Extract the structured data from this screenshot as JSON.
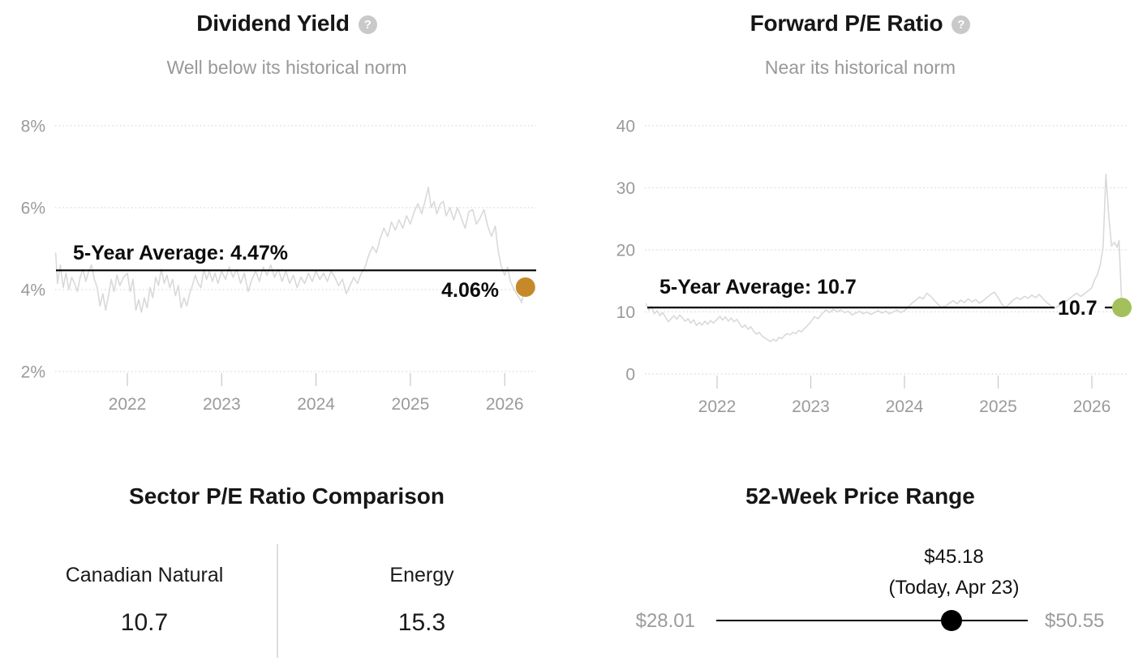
{
  "help_icon_glyph": "?",
  "chart_data": [
    {
      "type": "line",
      "title": "Dividend Yield",
      "subtitle": "Well below its historical norm",
      "ylim": [
        2,
        8
      ],
      "xlim": [
        2021.24,
        2026.32
      ],
      "grid": true,
      "series_color": "#d9d9d9",
      "average_line_color": "#000000",
      "yticks": [
        {
          "v": 8,
          "label": "8%"
        },
        {
          "v": 6,
          "label": "6%"
        },
        {
          "v": 4,
          "label": "4%"
        },
        {
          "v": 2,
          "label": "2%"
        }
      ],
      "xticks": [
        {
          "v": 2022,
          "label": "2022"
        },
        {
          "v": 2023,
          "label": "2023"
        },
        {
          "v": 2024,
          "label": "2024"
        },
        {
          "v": 2025,
          "label": "2025"
        },
        {
          "v": 2026,
          "label": "2026"
        }
      ],
      "average": {
        "value": 4.47,
        "label": "5-Year Average: 4.47%"
      },
      "current": {
        "value": 4.06,
        "label": "4.06%",
        "color": "#c6892a"
      },
      "series": [
        [
          2021.24,
          4.9
        ],
        [
          2021.26,
          4.15
        ],
        [
          2021.29,
          4.6
        ],
        [
          2021.32,
          4.05
        ],
        [
          2021.35,
          4.4
        ],
        [
          2021.38,
          4.0
        ],
        [
          2021.41,
          4.3
        ],
        [
          2021.44,
          4.15
        ],
        [
          2021.47,
          3.95
        ],
        [
          2021.5,
          4.3
        ],
        [
          2021.53,
          4.5
        ],
        [
          2021.56,
          4.2
        ],
        [
          2021.59,
          4.45
        ],
        [
          2021.62,
          4.6
        ],
        [
          2021.65,
          4.25
        ],
        [
          2021.68,
          4.05
        ],
        [
          2021.71,
          3.6
        ],
        [
          2021.74,
          3.9
        ],
        [
          2021.77,
          3.5
        ],
        [
          2021.8,
          3.85
        ],
        [
          2021.83,
          4.25
        ],
        [
          2021.86,
          3.95
        ],
        [
          2021.89,
          4.35
        ],
        [
          2021.92,
          4.1
        ],
        [
          2021.96,
          4.3
        ],
        [
          2022.0,
          4.4
        ],
        [
          2022.03,
          3.95
        ],
        [
          2022.06,
          4.25
        ],
        [
          2022.09,
          3.5
        ],
        [
          2022.12,
          3.75
        ],
        [
          2022.15,
          3.45
        ],
        [
          2022.18,
          3.8
        ],
        [
          2022.21,
          3.55
        ],
        [
          2022.24,
          4.05
        ],
        [
          2022.27,
          3.8
        ],
        [
          2022.3,
          4.3
        ],
        [
          2022.33,
          4.1
        ],
        [
          2022.36,
          4.5
        ],
        [
          2022.39,
          4.15
        ],
        [
          2022.42,
          4.35
        ],
        [
          2022.45,
          4.05
        ],
        [
          2022.48,
          4.25
        ],
        [
          2022.51,
          3.85
        ],
        [
          2022.54,
          4.1
        ],
        [
          2022.57,
          3.55
        ],
        [
          2022.6,
          3.8
        ],
        [
          2022.63,
          3.6
        ],
        [
          2022.66,
          3.9
        ],
        [
          2022.69,
          4.1
        ],
        [
          2022.72,
          4.35
        ],
        [
          2022.75,
          4.15
        ],
        [
          2022.78,
          4.05
        ],
        [
          2022.81,
          4.5
        ],
        [
          2022.84,
          4.25
        ],
        [
          2022.87,
          4.45
        ],
        [
          2022.9,
          4.2
        ],
        [
          2022.93,
          4.4
        ],
        [
          2022.96,
          4.15
        ],
        [
          2023.0,
          4.45
        ],
        [
          2023.04,
          4.25
        ],
        [
          2023.08,
          4.55
        ],
        [
          2023.12,
          4.3
        ],
        [
          2023.16,
          4.5
        ],
        [
          2023.2,
          4.15
        ],
        [
          2023.24,
          4.4
        ],
        [
          2023.28,
          3.95
        ],
        [
          2023.32,
          4.25
        ],
        [
          2023.36,
          4.45
        ],
        [
          2023.4,
          4.2
        ],
        [
          2023.44,
          4.55
        ],
        [
          2023.48,
          4.35
        ],
        [
          2023.52,
          4.6
        ],
        [
          2023.56,
          4.3
        ],
        [
          2023.6,
          4.5
        ],
        [
          2023.64,
          4.2
        ],
        [
          2023.68,
          4.45
        ],
        [
          2023.72,
          4.15
        ],
        [
          2023.76,
          4.35
        ],
        [
          2023.8,
          4.05
        ],
        [
          2023.84,
          4.3
        ],
        [
          2023.88,
          4.15
        ],
        [
          2023.92,
          4.4
        ],
        [
          2023.96,
          4.2
        ],
        [
          2024.0,
          4.45
        ],
        [
          2024.04,
          4.25
        ],
        [
          2024.08,
          4.4
        ],
        [
          2024.12,
          4.2
        ],
        [
          2024.16,
          4.45
        ],
        [
          2024.2,
          4.3
        ],
        [
          2024.24,
          4.1
        ],
        [
          2024.28,
          4.25
        ],
        [
          2024.32,
          3.9
        ],
        [
          2024.36,
          4.1
        ],
        [
          2024.4,
          4.3
        ],
        [
          2024.44,
          4.15
        ],
        [
          2024.48,
          4.4
        ],
        [
          2024.52,
          4.55
        ],
        [
          2024.56,
          4.85
        ],
        [
          2024.6,
          5.05
        ],
        [
          2024.64,
          4.9
        ],
        [
          2024.68,
          5.25
        ],
        [
          2024.72,
          5.5
        ],
        [
          2024.76,
          5.3
        ],
        [
          2024.8,
          5.65
        ],
        [
          2024.84,
          5.45
        ],
        [
          2024.88,
          5.7
        ],
        [
          2024.92,
          5.5
        ],
        [
          2024.96,
          5.8
        ],
        [
          2025.0,
          5.6
        ],
        [
          2025.04,
          5.9
        ],
        [
          2025.08,
          6.1
        ],
        [
          2025.12,
          5.85
        ],
        [
          2025.16,
          6.2
        ],
        [
          2025.19,
          6.5
        ],
        [
          2025.22,
          6.0
        ],
        [
          2025.25,
          6.15
        ],
        [
          2025.28,
          5.85
        ],
        [
          2025.32,
          6.1
        ],
        [
          2025.35,
          6.15
        ],
        [
          2025.38,
          5.8
        ],
        [
          2025.42,
          6.0
        ],
        [
          2025.46,
          5.7
        ],
        [
          2025.5,
          6.0
        ],
        [
          2025.54,
          5.75
        ],
        [
          2025.58,
          5.5
        ],
        [
          2025.62,
          5.9
        ],
        [
          2025.66,
          5.95
        ],
        [
          2025.7,
          5.6
        ],
        [
          2025.74,
          5.75
        ],
        [
          2025.78,
          5.95
        ],
        [
          2025.82,
          5.55
        ],
        [
          2025.86,
          5.3
        ],
        [
          2025.9,
          5.55
        ],
        [
          2025.93,
          4.95
        ],
        [
          2025.96,
          4.6
        ],
        [
          2026.0,
          4.35
        ],
        [
          2026.03,
          4.55
        ],
        [
          2026.06,
          4.2
        ],
        [
          2026.1,
          4.0
        ],
        [
          2026.13,
          3.88
        ],
        [
          2026.16,
          3.78
        ],
        [
          2026.18,
          3.68
        ],
        [
          2026.2,
          3.95
        ],
        [
          2026.22,
          4.06
        ]
      ]
    },
    {
      "type": "line",
      "title": "Forward P/E Ratio",
      "subtitle": "Near its historical norm",
      "ylim": [
        0,
        40
      ],
      "xlim": [
        2021.24,
        2026.32
      ],
      "grid": true,
      "series_color": "#d9d9d9",
      "average_line_color": "#000000",
      "yticks": [
        {
          "v": 40,
          "label": "40"
        },
        {
          "v": 30,
          "label": "30"
        },
        {
          "v": 20,
          "label": "20"
        },
        {
          "v": 10,
          "label": "10"
        },
        {
          "v": 0,
          "label": "0"
        }
      ],
      "xticks": [
        {
          "v": 2022,
          "label": "2022"
        },
        {
          "v": 2023,
          "label": "2023"
        },
        {
          "v": 2024,
          "label": "2024"
        },
        {
          "v": 2025,
          "label": "2025"
        },
        {
          "v": 2026,
          "label": "2026"
        }
      ],
      "average": {
        "value": 10.7,
        "label": "5-Year Average: 10.7"
      },
      "current": {
        "value": 10.7,
        "label": "10.7",
        "color": "#a3c05a"
      },
      "series": [
        [
          2021.24,
          11.4
        ],
        [
          2021.27,
          10.3
        ],
        [
          2021.3,
          10.9
        ],
        [
          2021.33,
          9.7
        ],
        [
          2021.36,
          10.2
        ],
        [
          2021.39,
          9.4
        ],
        [
          2021.42,
          9.9
        ],
        [
          2021.45,
          9.1
        ],
        [
          2021.48,
          8.4
        ],
        [
          2021.51,
          8.9
        ],
        [
          2021.54,
          9.4
        ],
        [
          2021.57,
          8.8
        ],
        [
          2021.6,
          9.5
        ],
        [
          2021.63,
          9.0
        ],
        [
          2021.66,
          8.5
        ],
        [
          2021.69,
          8.9
        ],
        [
          2021.72,
          8.2
        ],
        [
          2021.75,
          8.7
        ],
        [
          2021.78,
          7.8
        ],
        [
          2021.81,
          8.3
        ],
        [
          2021.84,
          7.9
        ],
        [
          2021.87,
          8.5
        ],
        [
          2021.9,
          8.0
        ],
        [
          2021.93,
          8.6
        ],
        [
          2021.96,
          8.2
        ],
        [
          2022.0,
          8.8
        ],
        [
          2022.03,
          9.3
        ],
        [
          2022.06,
          8.7
        ],
        [
          2022.09,
          9.2
        ],
        [
          2022.12,
          8.5
        ],
        [
          2022.15,
          9.0
        ],
        [
          2022.18,
          8.4
        ],
        [
          2022.21,
          8.8
        ],
        [
          2022.24,
          8.1
        ],
        [
          2022.27,
          7.5
        ],
        [
          2022.3,
          7.9
        ],
        [
          2022.33,
          7.2
        ],
        [
          2022.36,
          7.6
        ],
        [
          2022.39,
          6.9
        ],
        [
          2022.42,
          6.4
        ],
        [
          2022.45,
          6.7
        ],
        [
          2022.48,
          6.1
        ],
        [
          2022.51,
          5.8
        ],
        [
          2022.54,
          5.5
        ],
        [
          2022.57,
          5.2
        ],
        [
          2022.6,
          5.6
        ],
        [
          2022.63,
          5.3
        ],
        [
          2022.66,
          5.9
        ],
        [
          2022.69,
          5.7
        ],
        [
          2022.72,
          6.2
        ],
        [
          2022.75,
          6.5
        ],
        [
          2022.78,
          6.3
        ],
        [
          2022.81,
          6.7
        ],
        [
          2022.84,
          6.5
        ],
        [
          2022.87,
          7.0
        ],
        [
          2022.9,
          6.8
        ],
        [
          2022.93,
          7.3
        ],
        [
          2022.96,
          7.7
        ],
        [
          2023.0,
          8.4
        ],
        [
          2023.04,
          9.2
        ],
        [
          2023.08,
          8.9
        ],
        [
          2023.12,
          9.7
        ],
        [
          2023.16,
          10.3
        ],
        [
          2023.2,
          9.9
        ],
        [
          2023.24,
          10.4
        ],
        [
          2023.28,
          10.0
        ],
        [
          2023.32,
          10.3
        ],
        [
          2023.36,
          9.9
        ],
        [
          2023.4,
          10.1
        ],
        [
          2023.44,
          9.5
        ],
        [
          2023.48,
          9.8
        ],
        [
          2023.52,
          10.1
        ],
        [
          2023.56,
          9.7
        ],
        [
          2023.6,
          10.0
        ],
        [
          2023.64,
          9.6
        ],
        [
          2023.68,
          9.9
        ],
        [
          2023.72,
          10.2
        ],
        [
          2023.76,
          9.8
        ],
        [
          2023.8,
          10.1
        ],
        [
          2023.84,
          9.7
        ],
        [
          2023.88,
          10.0
        ],
        [
          2023.92,
          10.3
        ],
        [
          2023.96,
          9.9
        ],
        [
          2024.0,
          10.2
        ],
        [
          2024.04,
          10.8
        ],
        [
          2024.08,
          11.4
        ],
        [
          2024.12,
          11.9
        ],
        [
          2024.16,
          12.4
        ],
        [
          2024.2,
          12.1
        ],
        [
          2024.24,
          13.0
        ],
        [
          2024.28,
          12.5
        ],
        [
          2024.32,
          11.8
        ],
        [
          2024.36,
          11.2
        ],
        [
          2024.4,
          10.7
        ],
        [
          2024.44,
          11.0
        ],
        [
          2024.48,
          11.4
        ],
        [
          2024.52,
          11.8
        ],
        [
          2024.56,
          11.3
        ],
        [
          2024.6,
          11.9
        ],
        [
          2024.64,
          11.5
        ],
        [
          2024.68,
          12.1
        ],
        [
          2024.72,
          11.6
        ],
        [
          2024.76,
          12.0
        ],
        [
          2024.8,
          11.4
        ],
        [
          2024.84,
          11.8
        ],
        [
          2024.88,
          12.3
        ],
        [
          2024.92,
          12.8
        ],
        [
          2024.96,
          13.2
        ],
        [
          2025.0,
          12.3
        ],
        [
          2025.04,
          11.2
        ],
        [
          2025.08,
          10.7
        ],
        [
          2025.12,
          11.3
        ],
        [
          2025.16,
          11.9
        ],
        [
          2025.2,
          12.3
        ],
        [
          2025.24,
          12.0
        ],
        [
          2025.28,
          12.5
        ],
        [
          2025.32,
          12.2
        ],
        [
          2025.36,
          12.7
        ],
        [
          2025.4,
          12.3
        ],
        [
          2025.44,
          12.8
        ],
        [
          2025.48,
          12.1
        ],
        [
          2025.52,
          11.5
        ],
        [
          2025.56,
          11.0
        ],
        [
          2025.6,
          10.6
        ],
        [
          2025.64,
          10.9
        ],
        [
          2025.68,
          11.3
        ],
        [
          2025.72,
          11.7
        ],
        [
          2025.76,
          12.1
        ],
        [
          2025.8,
          12.6
        ],
        [
          2025.84,
          13.0
        ],
        [
          2025.88,
          12.5
        ],
        [
          2025.92,
          12.9
        ],
        [
          2025.96,
          13.4
        ],
        [
          2026.0,
          13.9
        ],
        [
          2026.03,
          15.2
        ],
        [
          2026.06,
          16.0
        ],
        [
          2026.09,
          17.6
        ],
        [
          2026.12,
          20.5
        ],
        [
          2026.15,
          32.2
        ],
        [
          2026.18,
          25.5
        ],
        [
          2026.21,
          20.6
        ],
        [
          2026.24,
          21.2
        ],
        [
          2026.27,
          20.4
        ],
        [
          2026.29,
          21.5
        ],
        [
          2026.32,
          10.7
        ]
      ]
    }
  ],
  "sector_comparison": {
    "title": "Sector P/E Ratio Comparison",
    "columns": [
      {
        "label": "Canadian Natural",
        "value": "10.7"
      },
      {
        "label": "Energy",
        "value": "15.3"
      }
    ]
  },
  "price_range": {
    "title": "52-Week Price Range",
    "low": "$28.01",
    "high": "$50.55",
    "current": "$45.18",
    "current_caption": "(Today, Apr 23)",
    "low_value": 28.01,
    "high_value": 50.55,
    "current_value": 45.18
  }
}
